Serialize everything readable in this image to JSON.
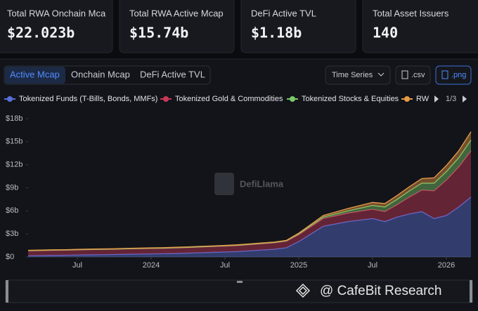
{
  "cards": [
    {
      "label": "Total RWA Onchain Mca",
      "value": "$22.023b"
    },
    {
      "label": "Total RWA Active Mcap",
      "value": "$15.74b"
    },
    {
      "label": "DeFi Active TVL",
      "value": "$1.18b"
    },
    {
      "label": "Total Asset Issuers",
      "value": "140"
    }
  ],
  "tabs": [
    "Active Mcap",
    "Onchain Mcap",
    "DeFi Active TVL"
  ],
  "buttons": {
    "time_series": "Time Series",
    "csv": ".csv",
    "png": ".png"
  },
  "legend_page": "1/3",
  "watermark": "DefiLlama",
  "overlay": "@ CafeBit Research",
  "chart_data": {
    "type": "stacked-area",
    "x": [
      "2023-03",
      "2023-04",
      "2023-05",
      "2023-06",
      "2023-07",
      "2023-08",
      "2023-09",
      "2023-10",
      "2023-11",
      "2023-12",
      "2024-01",
      "2024-02",
      "2024-03",
      "2024-04",
      "2024-05",
      "2024-06",
      "2024-07",
      "2024-08",
      "2024-09",
      "2024-10",
      "2024-11",
      "2024-12",
      "2025-01",
      "2025-02",
      "2025-03",
      "2025-04",
      "2025-05",
      "2025-06",
      "2025-07",
      "2025-08",
      "2025-09",
      "2025-10",
      "2025-11",
      "2025-12",
      "2026-01",
      "2026-02",
      "2026-03"
    ],
    "xlim": [
      "2023-03",
      "2026-03"
    ],
    "xticks": [
      {
        "value": "2023-07",
        "label": "Jul"
      },
      {
        "value": "2024-01",
        "label": "2024"
      },
      {
        "value": "2024-07",
        "label": "Jul"
      },
      {
        "value": "2025-01",
        "label": "2025"
      },
      {
        "value": "2025-07",
        "label": "Jul"
      },
      {
        "value": "2026-01",
        "label": "2026"
      }
    ],
    "ylim": [
      0,
      18
    ],
    "yticks": [
      {
        "value": 0,
        "label": "$0"
      },
      {
        "value": 3,
        "label": "$3b"
      },
      {
        "value": 6,
        "label": "$6b"
      },
      {
        "value": 9,
        "label": "$9b"
      },
      {
        "value": 12,
        "label": "$12b"
      },
      {
        "value": 15,
        "label": "$15b"
      },
      {
        "value": 18,
        "label": "$18b"
      }
    ],
    "series": [
      {
        "name": "Tokenized Funds (T-Bills, Bonds, MMFs)",
        "color": "#5a6fd8",
        "values": [
          0.15,
          0.18,
          0.2,
          0.22,
          0.25,
          0.28,
          0.3,
          0.32,
          0.35,
          0.38,
          0.4,
          0.42,
          0.45,
          0.5,
          0.55,
          0.6,
          0.65,
          0.7,
          0.8,
          0.9,
          1.0,
          1.2,
          2.0,
          3.0,
          4.0,
          4.3,
          4.6,
          4.8,
          5.0,
          4.6,
          5.2,
          5.6,
          5.9,
          5.0,
          5.4,
          6.5,
          7.8
        ]
      },
      {
        "name": "Tokenized Gold & Commodities",
        "color": "#c8385a",
        "values": [
          0.65,
          0.65,
          0.66,
          0.66,
          0.67,
          0.67,
          0.68,
          0.68,
          0.7,
          0.7,
          0.7,
          0.7,
          0.72,
          0.72,
          0.74,
          0.75,
          0.76,
          0.78,
          0.8,
          0.82,
          0.84,
          0.86,
          0.9,
          0.95,
          1.0,
          1.05,
          1.1,
          1.15,
          1.2,
          1.3,
          1.6,
          2.2,
          2.8,
          3.6,
          4.6,
          5.2,
          6.0
        ]
      },
      {
        "name": "Tokenized Stocks & Equities",
        "color": "#7cc86a",
        "values": [
          0.02,
          0.02,
          0.02,
          0.02,
          0.02,
          0.02,
          0.02,
          0.02,
          0.02,
          0.02,
          0.03,
          0.03,
          0.03,
          0.03,
          0.03,
          0.03,
          0.04,
          0.04,
          0.04,
          0.04,
          0.04,
          0.04,
          0.1,
          0.15,
          0.2,
          0.25,
          0.3,
          0.4,
          0.5,
          0.6,
          0.7,
          0.8,
          0.9,
          1.0,
          1.1,
          1.2,
          1.4
        ]
      },
      {
        "name": "RW",
        "color": "#e89a48",
        "values": [
          0.05,
          0.05,
          0.05,
          0.05,
          0.05,
          0.05,
          0.05,
          0.05,
          0.05,
          0.05,
          0.06,
          0.06,
          0.06,
          0.06,
          0.06,
          0.06,
          0.06,
          0.06,
          0.06,
          0.06,
          0.06,
          0.06,
          0.1,
          0.15,
          0.2,
          0.25,
          0.3,
          0.35,
          0.4,
          0.45,
          0.5,
          0.55,
          0.6,
          0.7,
          0.8,
          0.9,
          1.1
        ]
      }
    ]
  }
}
